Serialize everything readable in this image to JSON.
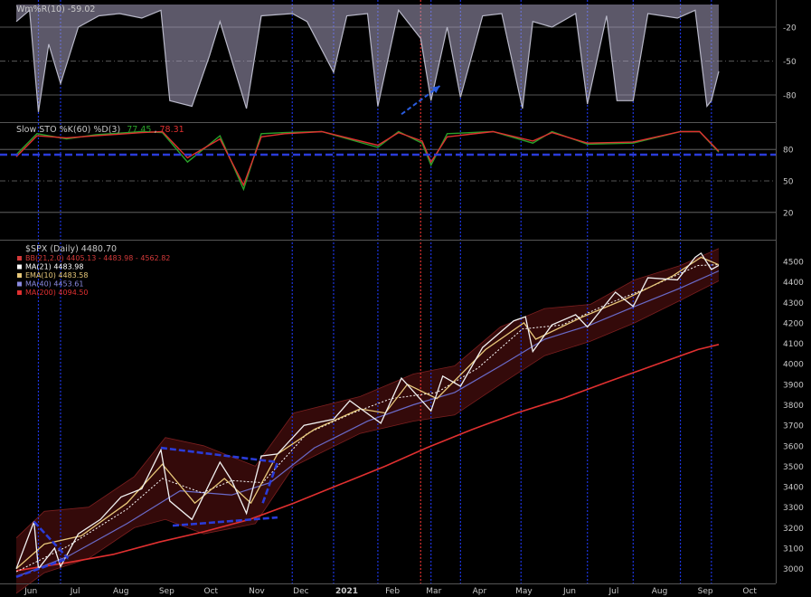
{
  "chart_data": [
    {
      "type": "line",
      "panel": "williams-r",
      "title": "Wm%R(10) -59.02",
      "ylim": [
        -100,
        0
      ],
      "yticks": [
        -20,
        -50,
        -80
      ],
      "ytick_labels": [
        "-20",
        "-50",
        "-80"
      ],
      "series": [
        {
          "name": "Wm%R(10)",
          "x": [
            "2020-05-27",
            "2020-06-05",
            "2020-06-11",
            "2020-06-18",
            "2020-06-26",
            "2020-07-08",
            "2020-07-22",
            "2020-08-05",
            "2020-08-20",
            "2020-09-02",
            "2020-09-08",
            "2020-09-23",
            "2020-10-05",
            "2020-10-12",
            "2020-10-30",
            "2020-11-09",
            "2020-11-30",
            "2020-12-10",
            "2020-12-28",
            "2021-01-06",
            "2021-01-20",
            "2021-01-27",
            "2021-02-10",
            "2021-02-25",
            "2021-03-04",
            "2021-03-15",
            "2021-03-24",
            "2021-04-08",
            "2021-04-21",
            "2021-05-05",
            "2021-05-12",
            "2021-05-25",
            "2021-06-10",
            "2021-06-18",
            "2021-07-01",
            "2021-07-08",
            "2021-07-19",
            "2021-07-29",
            "2021-08-18",
            "2021-08-30",
            "2021-09-07",
            "2021-09-10",
            "2021-09-15"
          ],
          "y": [
            -15,
            -5,
            -95,
            -35,
            -70,
            -20,
            -10,
            -8,
            -12,
            -5,
            -85,
            -90,
            -45,
            -15,
            -92,
            -10,
            -8,
            -15,
            -60,
            -10,
            -8,
            -90,
            -5,
            -30,
            -85,
            -20,
            -82,
            -10,
            -8,
            -92,
            -15,
            -20,
            -8,
            -88,
            -10,
            -85,
            -85,
            -8,
            -12,
            -5,
            -90,
            -85,
            -59.02
          ]
        }
      ],
      "value_label": "-59.02"
    },
    {
      "type": "line",
      "panel": "slow-stochastic",
      "title": "Slow STO %K(60) %D(3)",
      "k_value": "77.45",
      "d_value": "78.31",
      "ylim": [
        0,
        100
      ],
      "yticks": [
        80,
        50,
        20
      ],
      "ytick_labels": [
        "80",
        "50",
        "20"
      ],
      "series": [
        {
          "name": "%K(60)",
          "x": [
            "2020-05-27",
            "2020-06-10",
            "2020-06-30",
            "2020-07-20",
            "2020-08-20",
            "2020-09-03",
            "2020-09-20",
            "2020-10-12",
            "2020-10-28",
            "2020-11-09",
            "2020-11-25",
            "2020-12-20",
            "2021-01-27",
            "2021-02-10",
            "2021-02-26",
            "2021-03-04",
            "2021-03-15",
            "2021-04-15",
            "2021-05-12",
            "2021-05-25",
            "2021-06-18",
            "2021-07-19",
            "2021-08-20",
            "2021-09-02",
            "2021-09-15"
          ],
          "y": [
            75,
            95,
            90,
            94,
            97,
            96,
            68,
            93,
            42,
            95,
            96,
            97,
            82,
            97,
            86,
            65,
            95,
            97,
            86,
            97,
            85,
            86,
            97,
            97,
            77.45
          ]
        },
        {
          "name": "%D(3)",
          "x": [
            "2020-05-27",
            "2020-06-10",
            "2020-06-30",
            "2020-07-20",
            "2020-08-20",
            "2020-09-03",
            "2020-09-20",
            "2020-10-12",
            "2020-10-28",
            "2020-11-09",
            "2020-11-25",
            "2020-12-20",
            "2021-01-27",
            "2021-02-10",
            "2021-02-26",
            "2021-03-04",
            "2021-03-15",
            "2021-04-15",
            "2021-05-12",
            "2021-05-25",
            "2021-06-18",
            "2021-07-19",
            "2021-08-20",
            "2021-09-02",
            "2021-09-15"
          ],
          "y": [
            73,
            93,
            91,
            93,
            96,
            97,
            72,
            90,
            46,
            92,
            95,
            97,
            84,
            96,
            88,
            68,
            92,
            97,
            88,
            96,
            86,
            87,
            97,
            97,
            78.31
          ]
        }
      ]
    },
    {
      "type": "line",
      "panel": "price",
      "title": "$SPX (Daily) 4480.70",
      "ylim": [
        2950,
        4575
      ],
      "yticks": [
        3000,
        3100,
        3200,
        3300,
        3400,
        3500,
        3600,
        3700,
        3800,
        3900,
        4000,
        4100,
        4200,
        4300,
        4400,
        4500
      ],
      "ytick_labels": [
        "3000",
        "3100",
        "3200",
        "3300",
        "3400",
        "3500",
        "3600",
        "3700",
        "3800",
        "3900",
        "4000",
        "4100",
        "4200",
        "4300",
        "4400",
        "4500"
      ],
      "xtick_labels": [
        "Jun",
        "Jul",
        "Aug",
        "Sep",
        "Oct",
        "Nov",
        "Dec",
        "2021",
        "Feb",
        "Mar",
        "Apr",
        "May",
        "Jun",
        "Jul",
        "Aug",
        "Sep",
        "Oct"
      ],
      "xtick_dates": [
        "2020-06-01",
        "2020-07-01",
        "2020-08-01",
        "2020-09-01",
        "2020-10-01",
        "2020-11-01",
        "2020-12-01",
        "2021-01-01",
        "2021-02-01",
        "2021-03-01",
        "2021-04-01",
        "2021-05-01",
        "2021-06-01",
        "2021-07-01",
        "2021-08-01",
        "2021-09-01",
        "2021-10-01"
      ],
      "legend": [
        {
          "label": "BB(21,2.0) 4405.13 - 4483.98 - 4562.82",
          "color": "#d43a3a"
        },
        {
          "label": "MA(21) 4483.98",
          "color": "#ffffff"
        },
        {
          "label": "EMA(10) 4483.58",
          "color": "#e8c87a"
        },
        {
          "label": "MA(40) 4453.61",
          "color": "#8a8ae0"
        },
        {
          "label": "MA(200) 4094.50",
          "color": "#e03030"
        }
      ],
      "series": [
        {
          "name": "$SPX (Daily)",
          "x": [
            "2020-05-27",
            "2020-06-08",
            "2020-06-11",
            "2020-06-22",
            "2020-06-26",
            "2020-07-08",
            "2020-07-23",
            "2020-08-06",
            "2020-08-20",
            "2020-09-02",
            "2020-09-08",
            "2020-09-23",
            "2020-10-12",
            "2020-10-20",
            "2020-10-30",
            "2020-11-09",
            "2020-11-20",
            "2020-12-08",
            "2020-12-28",
            "2021-01-08",
            "2021-01-29",
            "2021-02-12",
            "2021-03-04",
            "2021-03-12",
            "2021-03-24",
            "2021-04-08",
            "2021-04-29",
            "2021-05-07",
            "2021-05-12",
            "2021-05-25",
            "2021-06-10",
            "2021-06-18",
            "2021-07-07",
            "2021-07-19",
            "2021-07-29",
            "2021-08-18",
            "2021-08-30",
            "2021-09-03",
            "2021-09-10",
            "2021-09-15"
          ],
          "y": [
            3000,
            3230,
            3000,
            3100,
            3010,
            3170,
            3240,
            3350,
            3390,
            3580,
            3330,
            3240,
            3520,
            3430,
            3270,
            3550,
            3560,
            3700,
            3730,
            3820,
            3710,
            3930,
            3770,
            3940,
            3890,
            4080,
            4210,
            4230,
            4060,
            4190,
            4240,
            4180,
            4350,
            4280,
            4420,
            4410,
            4520,
            4540,
            4460,
            4480.7
          ]
        },
        {
          "name": "MA(21)",
          "x": [
            "2020-05-27",
            "2020-07-01",
            "2020-08-10",
            "2020-09-03",
            "2020-09-30",
            "2020-10-20",
            "2020-11-10",
            "2020-12-10",
            "2021-01-10",
            "2021-02-05",
            "2021-03-08",
            "2021-04-05",
            "2021-05-05",
            "2021-06-01",
            "2021-07-01",
            "2021-08-01",
            "2021-09-01",
            "2021-09-15"
          ],
          "y": [
            2985,
            3110,
            3290,
            3440,
            3370,
            3430,
            3420,
            3660,
            3760,
            3830,
            3860,
            3980,
            4170,
            4190,
            4290,
            4380,
            4480,
            4483.98
          ]
        },
        {
          "name": "EMA(10)",
          "x": [
            "2020-05-27",
            "2020-06-15",
            "2020-07-10",
            "2020-08-10",
            "2020-09-03",
            "2020-09-25",
            "2020-10-15",
            "2020-11-02",
            "2020-11-20",
            "2020-12-15",
            "2021-01-15",
            "2021-02-01",
            "2021-02-16",
            "2021-03-08",
            "2021-04-10",
            "2021-05-06",
            "2021-05-14",
            "2021-06-15",
            "2021-07-15",
            "2021-08-15",
            "2021-09-03",
            "2021-09-15"
          ],
          "y": [
            3000,
            3120,
            3160,
            3320,
            3510,
            3320,
            3440,
            3320,
            3560,
            3680,
            3780,
            3760,
            3900,
            3830,
            4070,
            4200,
            4120,
            4230,
            4320,
            4430,
            4520,
            4483.58
          ]
        },
        {
          "name": "MA(40)",
          "x": [
            "2020-05-27",
            "2020-07-01",
            "2020-08-10",
            "2020-09-15",
            "2020-10-20",
            "2020-11-15",
            "2020-12-15",
            "2021-01-20",
            "2021-02-20",
            "2021-03-20",
            "2021-04-20",
            "2021-05-20",
            "2021-06-20",
            "2021-07-20",
            "2021-08-20",
            "2021-09-15"
          ],
          "y": [
            2960,
            3060,
            3220,
            3380,
            3360,
            3420,
            3590,
            3720,
            3800,
            3860,
            3990,
            4120,
            4190,
            4280,
            4370,
            4453.61
          ]
        },
        {
          "name": "MA(200)",
          "x": [
            "2020-05-27",
            "2020-07-01",
            "2020-08-01",
            "2020-09-01",
            "2020-10-01",
            "2020-11-01",
            "2020-12-01",
            "2021-01-01",
            "2021-02-01",
            "2021-03-01",
            "2021-04-01",
            "2021-05-01",
            "2021-06-01",
            "2021-07-01",
            "2021-08-01",
            "2021-09-01",
            "2021-09-15"
          ],
          "y": [
            2990,
            3030,
            3070,
            3130,
            3180,
            3240,
            3320,
            3410,
            3500,
            3590,
            3680,
            3760,
            3830,
            3910,
            3990,
            4070,
            4094.5
          ]
        },
        {
          "name": "BB(21,2.0) upper",
          "x": [
            "2020-05-27",
            "2020-06-15",
            "2020-07-15",
            "2020-08-15",
            "2020-09-05",
            "2020-10-01",
            "2020-11-05",
            "2020-12-01",
            "2021-01-15",
            "2021-02-20",
            "2021-03-20",
            "2021-04-20",
            "2021-05-20",
            "2021-06-20",
            "2021-07-20",
            "2021-08-20",
            "2021-09-15"
          ],
          "y": [
            3150,
            3280,
            3300,
            3450,
            3640,
            3600,
            3500,
            3760,
            3840,
            3950,
            3990,
            4180,
            4270,
            4290,
            4410,
            4480,
            4562.82
          ]
        },
        {
          "name": "BB(21,2.0) lower",
          "x": [
            "2020-05-27",
            "2020-06-15",
            "2020-07-15",
            "2020-08-15",
            "2020-09-05",
            "2020-10-01",
            "2020-11-05",
            "2020-12-01",
            "2021-01-15",
            "2021-02-20",
            "2021-03-20",
            "2021-04-20",
            "2021-05-20",
            "2021-06-20",
            "2021-07-20",
            "2021-08-20",
            "2021-09-15"
          ],
          "y": [
            2880,
            2980,
            3050,
            3200,
            3240,
            3170,
            3220,
            3500,
            3660,
            3720,
            3750,
            3900,
            4040,
            4110,
            4200,
            4310,
            4405.13
          ]
        }
      ],
      "annotations": {
        "trend_lines_color": "#2a3bd8",
        "trend_lines": [
          {
            "x": [
              "2020-06-08",
              "2020-07-01"
            ],
            "y": [
              3230,
              3050
            ]
          },
          {
            "x": [
              "2020-05-27",
              "2020-07-01"
            ],
            "y": [
              2960,
              3050
            ]
          },
          {
            "x": [
              "2020-09-02",
              "2020-11-20"
            ],
            "y": [
              3590,
              3520
            ]
          },
          {
            "x": [
              "2020-09-10",
              "2020-11-20"
            ],
            "y": [
              3210,
              3250
            ]
          },
          {
            "x": [
              "2020-11-10",
              "2020-11-20"
            ],
            "y": [
              3320,
              3520
            ]
          }
        ],
        "level_lines": [
          {
            "panel": "slow-stochastic",
            "y": 75,
            "color": "#2a3bd8"
          }
        ],
        "arrow": {
          "panel": "williams-r",
          "from": [
            "2021-02-12",
            -97
          ],
          "to": [
            "2021-03-10",
            -72
          ],
          "color": "#2a5ce0"
        },
        "vertical_markers_blue": [
          "2020-06-11",
          "2020-06-26",
          "2020-11-30",
          "2020-12-28",
          "2021-01-27",
          "2021-03-04",
          "2021-03-24",
          "2021-05-04",
          "2021-06-18",
          "2021-07-19",
          "2021-08-20",
          "2021-09-10"
        ],
        "vertical_marker_red": "2021-02-25"
      }
    }
  ],
  "colors": {
    "background": "#000000",
    "wmr_line": "#b8b8c8",
    "wmr_fill": "#a8a0c0",
    "sto_k": "#2aa02a",
    "sto_d": "#e03030",
    "grid_h": "#707070",
    "bb_fill": "#3a0b0b",
    "marker_blue": "#1c34e0",
    "marker_red": "#e03030",
    "text": "#c8c8c8",
    "legend_bb": "#d43a3a"
  }
}
